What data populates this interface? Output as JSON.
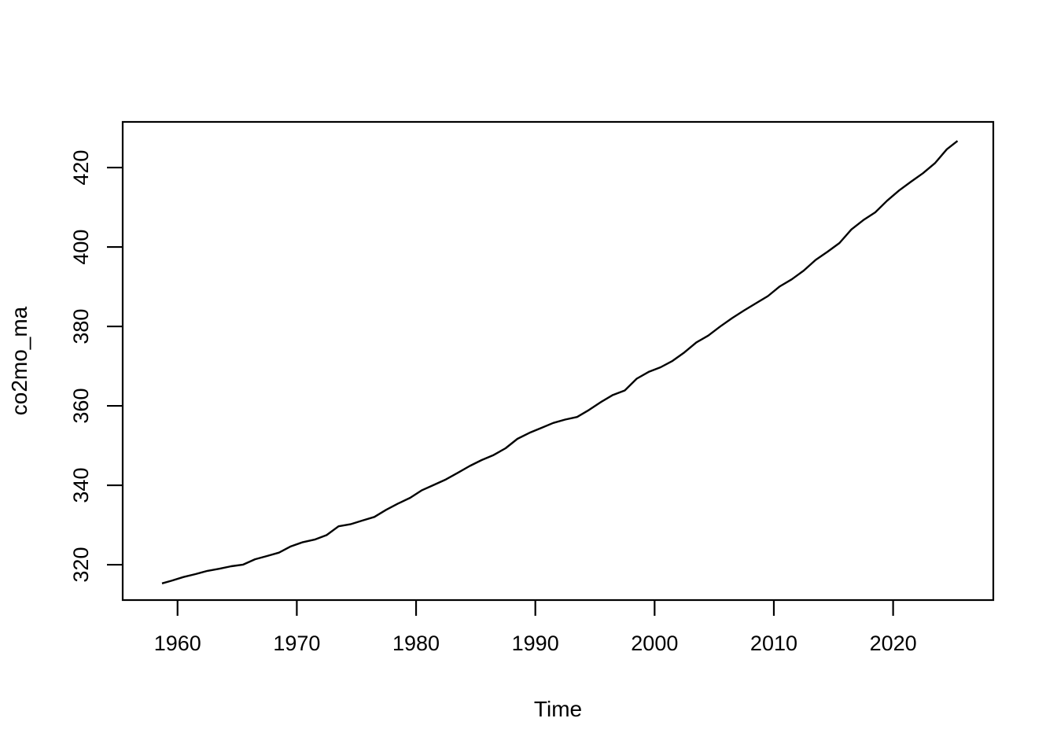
{
  "figure": {
    "background": "#ffffff",
    "axis_color": "#000000"
  },
  "chart_data": {
    "type": "line",
    "title": "",
    "xlabel": "Time",
    "ylabel": "co2mo_ma",
    "grid": false,
    "legend": null,
    "line_color": "#000000",
    "xlim": [
      1955.4,
      2028.4
    ],
    "ylim": [
      311.1,
      431.5
    ],
    "x_tick_values": [
      1960,
      1970,
      1980,
      1990,
      2000,
      2010,
      2020
    ],
    "x_tick_labels": [
      "1960",
      "1970",
      "1980",
      "1990",
      "2000",
      "2010",
      "2020"
    ],
    "y_tick_values": [
      320,
      340,
      360,
      380,
      400,
      420
    ],
    "y_tick_labels": [
      "320",
      "340",
      "360",
      "380",
      "400",
      "420"
    ],
    "series": [
      {
        "name": "co2mo_ma",
        "x": [
          1958.7,
          1959.5,
          1960.5,
          1961.5,
          1962.5,
          1963.5,
          1964.5,
          1965.5,
          1966.5,
          1967.5,
          1968.5,
          1969.5,
          1970.5,
          1971.5,
          1972.5,
          1973.5,
          1974.5,
          1975.5,
          1976.5,
          1977.5,
          1978.5,
          1979.5,
          1980.5,
          1981.5,
          1982.5,
          1983.5,
          1984.5,
          1985.5,
          1986.5,
          1987.5,
          1988.5,
          1989.5,
          1990.5,
          1991.5,
          1992.5,
          1993.5,
          1994.5,
          1995.5,
          1996.5,
          1997.5,
          1998.5,
          1999.5,
          2000.5,
          2001.5,
          2002.5,
          2003.5,
          2004.5,
          2005.5,
          2006.5,
          2007.5,
          2008.5,
          2009.5,
          2010.5,
          2011.5,
          2012.5,
          2013.5,
          2014.5,
          2015.5,
          2016.5,
          2017.5,
          2018.5,
          2019.5,
          2020.5,
          2021.5,
          2022.5,
          2023.5,
          2024.5,
          2025.4
        ],
        "y": [
          315.3,
          315.98,
          316.91,
          317.64,
          318.45,
          318.99,
          319.62,
          320.04,
          321.37,
          322.18,
          323.05,
          324.62,
          325.68,
          326.32,
          327.46,
          329.68,
          330.19,
          331.12,
          332.03,
          333.84,
          335.41,
          336.84,
          338.76,
          340.12,
          341.48,
          343.15,
          344.87,
          346.35,
          347.61,
          349.31,
          351.69,
          353.2,
          354.45,
          355.7,
          356.54,
          357.21,
          358.96,
          360.97,
          362.74,
          363.88,
          366.84,
          368.54,
          369.71,
          371.32,
          373.45,
          375.98,
          377.7,
          379.98,
          382.09,
          384.02,
          385.83,
          387.64,
          390.1,
          391.85,
          394.06,
          396.74,
          398.81,
          401.01,
          404.41,
          406.76,
          408.72,
          411.66,
          414.24,
          416.45,
          418.56,
          421.08,
          424.61,
          426.7
        ]
      }
    ]
  }
}
